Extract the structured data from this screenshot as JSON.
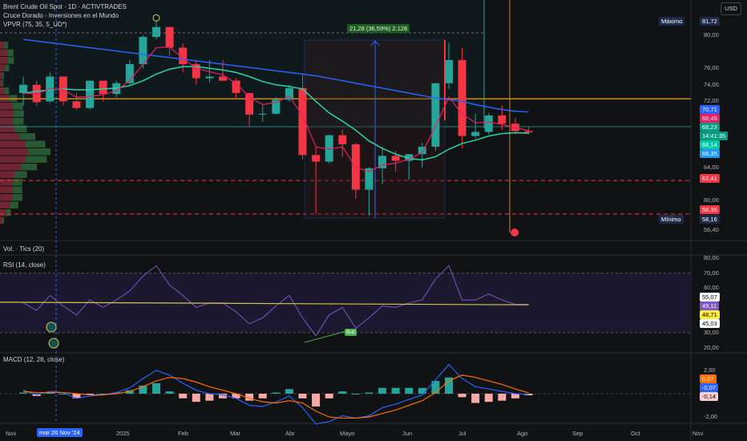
{
  "header": {
    "title": "Brent Crude Oil Spot · 1D · ACTIVTRADES",
    "indicator1": "Cruce Dorado - Inversiones en el Mundo",
    "indicator2": "VPVR (75, 35, 5_UD*)",
    "currency": "USD"
  },
  "panes": {
    "volume": "Vol. · Tics (20)",
    "rsi": "RSI (14, close)",
    "macd": "MACD (12, 26, close)",
    "divergence_label": "Bull"
  },
  "measure": {
    "label": "21,28 (36,59%) 2.128"
  },
  "price_axis": {
    "ticks": [
      "80,00",
      "76,00",
      "74,00",
      "72,00",
      "64,00",
      "60,00",
      "56,40"
    ],
    "max_label": "Máximo",
    "max_value": "81,72",
    "min_label": "Mínimo",
    "min_value": "58,16",
    "tags": [
      {
        "value": "70,71",
        "color": "#2962ff"
      },
      {
        "value": "68,46",
        "color": "#e91e63"
      },
      {
        "value": "68,23",
        "sub": "14:41:35",
        "color": "#089981"
      },
      {
        "value": "68,14",
        "color": "#00c9a7"
      },
      {
        "value": "66,35",
        "color": "#2196f3"
      },
      {
        "value": "62,41",
        "color": "#f23645"
      },
      {
        "value": "58,36",
        "color": "#f23645"
      }
    ]
  },
  "rsi_axis": {
    "ticks": [
      "80,00",
      "70,00",
      "60,00",
      "30,00",
      "20,00"
    ],
    "tags": [
      {
        "value": "55,07",
        "color": "#ffffff",
        "text": "#000"
      },
      {
        "value": "49,11",
        "color": "#7e57c2",
        "text": "#fff"
      },
      {
        "value": "48,71",
        "color": "#ffeb3b",
        "text": "#000"
      },
      {
        "value": "45,03",
        "color": "#ffffff",
        "text": "#000"
      }
    ]
  },
  "macd_axis": {
    "ticks": [
      "2,00",
      "-2,00"
    ],
    "tags": [
      {
        "value": "0,07",
        "color": "#ff6d00",
        "text": "#fff"
      },
      {
        "value": "-0,07",
        "color": "#2962ff",
        "text": "#fff"
      },
      {
        "value": "-0,14",
        "color": "#ffcdd2",
        "text": "#000"
      }
    ]
  },
  "time_axis": {
    "labels": [
      "Nov",
      "2025",
      "Feb",
      "Mar",
      "Abr",
      "Mayo",
      "Jun",
      "Jul",
      "Ago",
      "Sep",
      "Oct",
      "Nov"
    ],
    "crosshair_label": "mar 26 Nov '24"
  },
  "colors": {
    "up": "#26a69a",
    "down": "#f23645",
    "slow_ma": "#2962ff",
    "mid_ma": "#26d7a6",
    "fast_ma": "#e91e63",
    "rsi": "#7e57c2",
    "rsi_ma": "#d4c94a",
    "macd": "#2962ff",
    "signal": "#ff6d00"
  },
  "chart_data": {
    "type": "candlestick",
    "ylim": [
      56.4,
      82
    ],
    "levels": {
      "resistance": 72.3,
      "support_1": 62.41,
      "support_2": 58.36
    },
    "candles": [
      [
        "2024-11-04",
        73,
        75,
        71.5,
        74
      ],
      [
        "2024-11-11",
        74,
        74.5,
        71.5,
        71.9
      ],
      [
        "2024-11-18",
        72,
        75.5,
        71.8,
        75
      ],
      [
        "2024-11-25",
        75,
        75,
        71.5,
        72
      ],
      [
        "2024-12-02",
        72,
        73,
        71,
        71.2
      ],
      [
        "2024-12-09",
        71.2,
        74.5,
        71,
        74.5
      ],
      [
        "2024-12-16",
        74.5,
        74.5,
        72,
        72.9
      ],
      [
        "2024-12-23",
        72.9,
        74.5,
        72.5,
        74.2
      ],
      [
        "2024-12-30",
        74.2,
        77,
        74,
        76.5
      ],
      [
        "2025-01-06",
        76.5,
        80,
        76,
        79.8
      ],
      [
        "2025-01-13",
        79.8,
        81.72,
        79.5,
        81
      ],
      [
        "2025-01-20",
        81,
        81,
        77.5,
        78.5
      ],
      [
        "2025-01-27",
        78.5,
        79,
        75.5,
        76.5
      ],
      [
        "2025-02-03",
        76.5,
        77,
        74,
        74.8
      ],
      [
        "2025-02-10",
        74.8,
        77,
        74.3,
        75
      ],
      [
        "2025-02-17",
        75,
        77,
        74.5,
        74.5
      ],
      [
        "2025-02-24",
        74.5,
        74.8,
        72.3,
        73
      ],
      [
        "2025-03-03",
        73,
        73,
        69,
        70.4
      ],
      [
        "2025-03-10",
        70.4,
        71.5,
        69.5,
        70.5
      ],
      [
        "2025-03-17",
        70.5,
        72.5,
        70.4,
        72.2
      ],
      [
        "2025-03-24",
        72.2,
        74,
        72,
        73.6
      ],
      [
        "2025-03-31",
        73.6,
        75.3,
        65,
        65.5
      ],
      [
        "2025-04-07",
        65.5,
        66.5,
        58.4,
        64.7
      ],
      [
        "2025-04-14",
        64.7,
        68,
        64.5,
        67.9
      ],
      [
        "2025-04-21",
        67.9,
        68.6,
        65.3,
        66.8
      ],
      [
        "2025-04-28",
        66.8,
        67,
        60.2,
        61.3
      ],
      [
        "2025-05-05",
        61.3,
        64,
        58.16,
        63.9
      ],
      [
        "2025-05-12",
        63.9,
        66.5,
        62,
        65.4
      ],
      [
        "2025-05-19",
        65.4,
        66,
        63.5,
        64.8
      ],
      [
        "2025-05-26",
        64.8,
        65.5,
        62.5,
        65.6
      ],
      [
        "2025-06-02",
        65.6,
        67,
        64,
        66.5
      ],
      [
        "2025-06-09",
        66.5,
        74,
        66,
        74.2
      ],
      [
        "2025-06-16",
        74.2,
        79.1,
        73.5,
        77
      ],
      [
        "2025-06-23",
        77,
        78.5,
        66.3,
        67.8
      ],
      [
        "2025-06-30",
        67.8,
        70.5,
        67.5,
        68.3
      ],
      [
        "2025-07-07",
        68.3,
        70.6,
        68,
        70.3
      ],
      [
        "2025-07-14",
        70.3,
        71.5,
        68.5,
        69.3
      ],
      [
        "2025-07-21",
        69.3,
        70,
        68,
        68.4
      ],
      [
        "2025-07-28",
        68.4,
        69,
        68,
        68.23
      ]
    ],
    "slow_ma": [
      79.5,
      79.3,
      79.1,
      78.9,
      78.7,
      78.5,
      78.3,
      78.1,
      77.9,
      77.7,
      77.5,
      77.3,
      77.1,
      76.9,
      76.7,
      76.5,
      76.3,
      76.1,
      75.9,
      75.7,
      75.5,
      75.3,
      75.1,
      74.8,
      74.5,
      74.2,
      73.9,
      73.6,
      73.3,
      73,
      72.7,
      72.4,
      72.2,
      72,
      71.6,
      71.3,
      71,
      70.8,
      70.71
    ],
    "mid_ma": [
      73,
      73.2,
      73.4,
      73.5,
      73.4,
      73.4,
      73.5,
      73.6,
      73.9,
      74.5,
      75.3,
      75.9,
      76.2,
      76.2,
      76,
      75.8,
      75.5,
      75,
      74.4,
      74,
      73.8,
      73.5,
      72,
      70.6,
      69.6,
      68.5,
      67.2,
      66.3,
      65.6,
      65.1,
      64.9,
      65.3,
      66.2,
      66.9,
      67.3,
      67.8,
      68.1,
      68.2,
      68.14
    ],
    "fast_ma": [
      73,
      72.9,
      73.5,
      73.4,
      72.5,
      72.6,
      72.8,
      73.3,
      74.5,
      76.5,
      78.5,
      78.6,
      77.2,
      76,
      75.6,
      75.2,
      74.2,
      72.5,
      71.6,
      71.9,
      72.6,
      70.3,
      66.5,
      66.2,
      66.5,
      64,
      63.5,
      64.3,
      64.5,
      65,
      65.8,
      69,
      72.5,
      70.5,
      69.4,
      69.5,
      69.2,
      68.8,
      68.46
    ],
    "rsi": [
      50,
      45,
      55,
      48,
      42,
      52,
      47,
      52,
      58,
      68,
      75,
      62,
      55,
      47,
      50,
      50,
      44,
      36,
      40,
      48,
      55,
      40,
      28,
      42,
      47,
      33,
      40,
      48,
      47,
      50,
      52,
      66,
      75,
      52,
      52,
      56,
      52,
      49,
      49.11
    ],
    "rsi_ma": [
      50.5,
      48.71
    ],
    "macd": [
      0.3,
      -0.1,
      0.2,
      0.1,
      -0.4,
      -0.2,
      -0.1,
      0.1,
      0.5,
      1.3,
      2.0,
      1.6,
      0.9,
      0.3,
      0,
      -0.1,
      -0.4,
      -1.0,
      -1.1,
      -0.7,
      -0.2,
      -1.2,
      -2.6,
      -2.4,
      -1.9,
      -2.1,
      -1.9,
      -1.2,
      -0.9,
      -0.5,
      -0.1,
      1.2,
      2.5,
      1.3,
      0.6,
      0.4,
      0.2,
      0,
      -0.07
    ],
    "signal": [
      0.2,
      0.1,
      0.1,
      0.1,
      0,
      -0.1,
      -0.1,
      0,
      0.2,
      0.6,
      1.1,
      1.4,
      1.3,
      1,
      0.6,
      0.3,
      0,
      -0.4,
      -0.7,
      -0.8,
      -0.6,
      -0.8,
      -1.5,
      -2,
      -2.1,
      -2.1,
      -2,
      -1.7,
      -1.4,
      -1,
      -0.6,
      0.1,
      1.1,
      1.6,
      1.4,
      1.1,
      0.8,
      0.4,
      0.07
    ]
  }
}
